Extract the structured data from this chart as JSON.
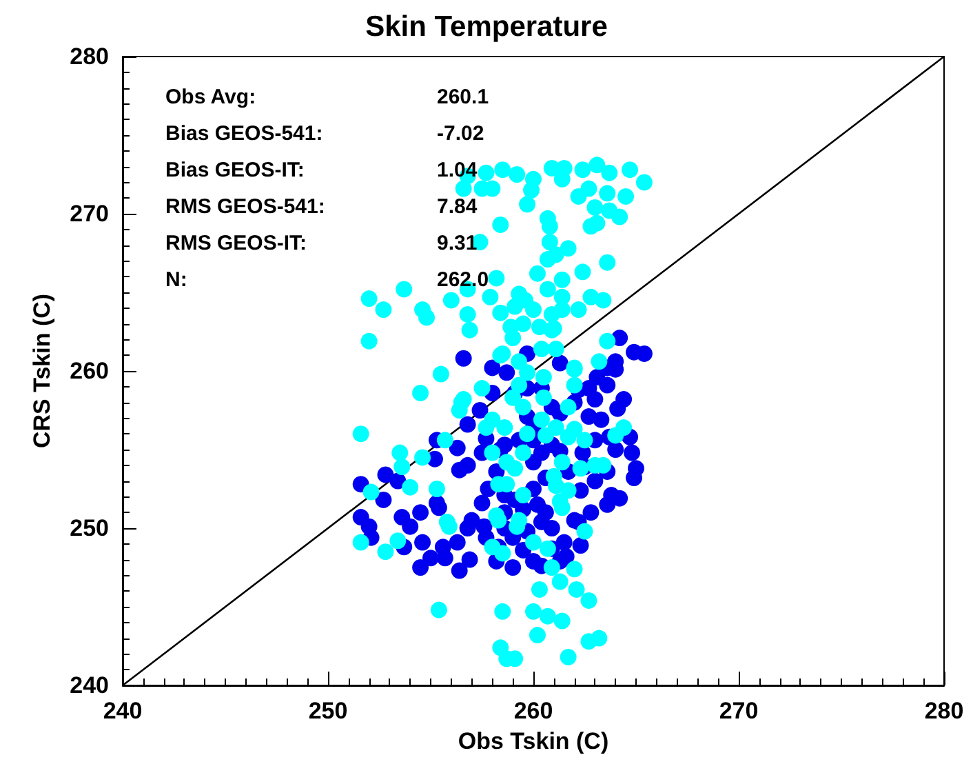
{
  "chart_data": {
    "type": "scatter",
    "title": "Skin Temperature",
    "xlabel": "Obs Tskin (C)",
    "ylabel": "CRS Tskin (C)",
    "xlim": [
      240,
      280
    ],
    "xticks": [
      240,
      250,
      260,
      270,
      280
    ],
    "ylim": [
      240,
      280
    ],
    "yticks": [
      240,
      250,
      260,
      270,
      280
    ],
    "marker": "circle",
    "annotations": [
      "Obs Avg:",
      "260.1",
      "Bias GEOS-541:",
      "-7.02",
      "Bias GEOS-IT:",
      "1.04",
      "RMS GEOS-541:",
      "7.84",
      "RMS GEOS-IT:",
      "9.31",
      "N:",
      "262.0"
    ],
    "series": [
      {
        "type": "line",
        "color": "#000000",
        "marker": "none",
        "x": [
          240,
          280
        ],
        "values": [
          240,
          280
        ]
      },
      {
        "color": "#0000ee",
        "x": [
          256.6,
          264.2,
          264.9,
          265.4,
          264.0,
          263.6,
          264.0,
          258.0,
          259.7,
          258.7,
          261.3,
          263.1,
          263.6,
          262.7,
          263.0,
          264.4,
          264.1,
          257.4,
          256.8,
          256.3,
          255.2,
          256.8,
          256.4,
          257.7,
          257.5,
          262.7,
          263.3,
          263.7,
          264.7,
          264.8,
          265.0,
          264.9,
          264.0,
          263.6,
          260.4,
          260.0,
          260.6,
          262.3,
          263.0,
          263.8,
          264.2,
          263.6,
          262.8,
          262.2,
          262.3,
          261.5,
          261.6,
          260.4,
          259.7,
          259.5,
          259.0,
          258.2,
          257.7,
          257.5,
          257.8,
          257.0,
          256.8,
          256.9,
          256.4,
          256.3,
          255.6,
          255.7,
          255.0,
          254.5,
          254.6,
          254.0,
          254.5,
          253.6,
          253.7,
          252.7,
          252.0,
          252.1,
          251.6,
          251.6,
          252.8,
          253.4,
          255.3,
          255.4,
          255.3,
          258.0,
          259.1,
          259.7,
          259.7,
          260.0,
          260.9,
          260.0,
          259.3,
          258.6,
          258.4,
          258.2,
          258.6,
          259.1,
          259.5,
          260.2,
          260.4,
          260.6,
          260.9,
          262.0,
          260.0,
          261.7,
          262.4,
          262.5,
          263.0,
          261.3,
          261.3,
          260.9,
          260.4,
          262.0,
          262.2,
          258.6,
          257.6,
          258.6,
          259.0,
          260.0,
          261.3,
          258.3,
          260.9
        ],
        "values": [
          260.8,
          262.1,
          261.2,
          261.1,
          260.6,
          260.2,
          260.1,
          260.2,
          261.1,
          259.9,
          260.5,
          259.6,
          259.1,
          258.9,
          258.2,
          258.2,
          257.6,
          257.5,
          256.6,
          255.1,
          254.4,
          254.0,
          253.7,
          255.7,
          254.8,
          257.1,
          256.9,
          255.8,
          255.8,
          254.8,
          253.8,
          253.2,
          255.0,
          253.6,
          254.8,
          254.2,
          253.2,
          252.4,
          253.0,
          252.1,
          251.9,
          251.5,
          251.0,
          250.4,
          248.9,
          249.1,
          248.2,
          247.6,
          249.8,
          248.6,
          247.5,
          247.9,
          249.4,
          251.6,
          252.5,
          250.5,
          250.0,
          248.0,
          247.3,
          249.1,
          248.8,
          248.1,
          248.1,
          247.5,
          249.1,
          250.1,
          251.0,
          250.7,
          248.8,
          251.8,
          250.1,
          249.4,
          250.7,
          252.8,
          253.4,
          253.0,
          251.6,
          251.3,
          255.6,
          258.6,
          258.6,
          258.9,
          257.1,
          256.4,
          255.3,
          255.6,
          255.6,
          255.3,
          255.0,
          253.6,
          252.1,
          251.8,
          251.2,
          251.5,
          250.4,
          251.0,
          250.0,
          250.5,
          252.5,
          253.6,
          254.8,
          253.9,
          255.6,
          254.9,
          257.3,
          257.7,
          258.9,
          258.0,
          258.8,
          251.0,
          250.1,
          250.0,
          249.4,
          247.9,
          247.9,
          248.8,
          248.7
        ]
      },
      {
        "color": "#00ffff",
        "x": [
          257.7,
          258.5,
          259.2,
          260.0,
          256.8,
          256.6,
          257.5,
          258.0,
          259.9,
          259.7,
          260.9,
          261.5,
          261.4,
          262.4,
          263.1,
          263.7,
          264.7,
          265.4,
          262.7,
          263.6,
          264.5,
          262.2,
          263.0,
          263.7,
          264.2,
          263.1,
          262.8,
          260.7,
          260.8,
          258.4,
          260.8,
          257.4,
          261.7,
          261.1,
          260.7,
          263.6,
          260.2,
          262.4,
          261.4,
          258.2,
          260.7,
          259.3,
          259.6,
          259.1,
          257.9,
          261.4,
          262.8,
          263.4,
          258.4,
          260.0,
          260.9,
          261.4,
          262.2,
          258.9,
          259.5,
          260.3,
          261.0,
          259.0,
          260.9,
          256.8,
          256.9,
          256.0,
          254.6,
          253.7,
          252.0,
          252.7,
          252.0,
          254.8,
          256.8,
          263.6,
          263.2,
          255.5,
          254.5,
          256.6,
          258.5,
          260.4,
          262.0,
          257.5,
          256.5,
          256.4,
          251.6,
          258.4,
          259.3,
          261.1,
          262.0,
          262.0,
          259.7,
          260.5,
          259.3,
          259.0,
          260.5,
          261.7,
          259.5,
          258.0,
          258.6,
          257.7,
          260.4,
          261.1,
          262.0,
          259.7,
          260.6,
          261.7,
          262.5,
          264.4,
          264.0,
          258.0,
          259.5,
          258.7,
          259.1,
          261.4,
          262.3,
          263.0,
          263.4,
          261.0,
          261.1,
          261.7,
          258.3,
          258.7,
          259.5,
          261.3,
          261.4,
          258.2,
          259.3,
          258.3,
          259.2,
          262.5,
          260.0,
          260.7,
          258.0,
          258.5,
          255.8,
          255.9,
          255.3,
          254.0,
          252.1,
          253.5,
          253.6,
          254.6,
          255.7,
          253.4,
          252.8,
          251.6,
          260.9,
          262.0,
          261.3,
          260.3,
          262.1,
          262.7,
          255.4,
          258.5,
          260.0,
          260.7,
          261.4,
          260.2,
          262.7,
          263.2,
          258.4,
          258.7,
          259.1,
          261.7
        ],
        "values": [
          272.6,
          272.8,
          272.5,
          272.2,
          272.4,
          271.6,
          271.6,
          271.6,
          271.5,
          270.6,
          272.9,
          272.9,
          272.2,
          272.8,
          273.1,
          272.6,
          272.8,
          272.0,
          271.6,
          271.3,
          271.1,
          271.1,
          270.4,
          270.2,
          269.8,
          269.4,
          269.2,
          269.7,
          269.2,
          269.3,
          268.2,
          268.2,
          267.8,
          267.4,
          267.1,
          266.9,
          266.2,
          266.3,
          265.8,
          265.9,
          265.2,
          264.9,
          264.5,
          264.1,
          264.7,
          264.7,
          264.7,
          264.5,
          263.7,
          263.9,
          263.6,
          263.9,
          263.9,
          262.8,
          263.0,
          262.8,
          262.7,
          262.1,
          262.6,
          263.6,
          262.6,
          264.5,
          263.9,
          265.2,
          264.6,
          263.9,
          261.9,
          263.4,
          265.2,
          261.9,
          260.6,
          259.8,
          258.6,
          258.2,
          261.1,
          261.4,
          260.2,
          258.9,
          258.0,
          257.5,
          256.0,
          261.0,
          260.6,
          261.4,
          260.1,
          259.1,
          259.9,
          259.6,
          259.1,
          258.3,
          258.3,
          257.7,
          257.7,
          256.9,
          256.4,
          256.4,
          256.9,
          256.4,
          256.3,
          256.0,
          255.9,
          255.8,
          255.6,
          256.4,
          255.9,
          254.8,
          254.8,
          254.2,
          253.8,
          254.2,
          253.8,
          254.0,
          254.0,
          253.3,
          252.7,
          252.4,
          252.8,
          252.8,
          252.1,
          251.7,
          251.3,
          250.8,
          250.5,
          250.5,
          250.1,
          249.8,
          249.1,
          248.7,
          248.8,
          248.4,
          250.4,
          250.1,
          252.5,
          252.6,
          252.3,
          254.8,
          253.9,
          254.5,
          255.6,
          249.2,
          248.5,
          249.1,
          247.5,
          247.4,
          246.6,
          246.1,
          246.1,
          245.4,
          244.8,
          244.7,
          244.7,
          244.4,
          244.1,
          243.2,
          242.8,
          243.0,
          242.4,
          241.7,
          241.7,
          241.8
        ]
      }
    ]
  }
}
